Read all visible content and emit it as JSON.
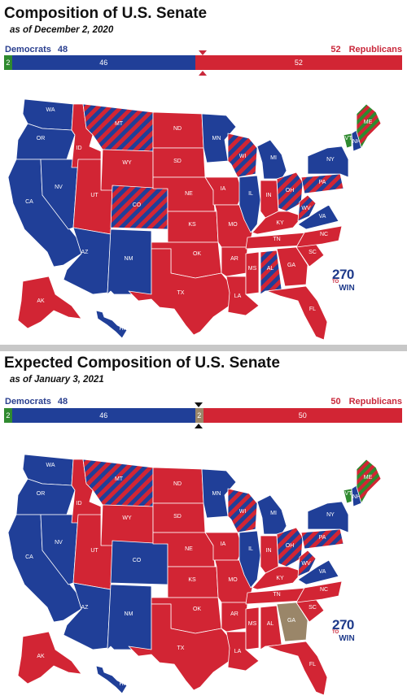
{
  "colors": {
    "democrat": "#203f98",
    "republican": "#d22534",
    "independent": "#2f8a2f",
    "tossup": "#9a8669",
    "split": "striped-red-blue",
    "split_ind_rep": "striped-green-red"
  },
  "top": {
    "title": "Composition of U.S. Senate",
    "subtitle": "as of December 2, 2020",
    "dem_label": "Democrats",
    "dem_total": "48",
    "rep_label": "Republicans",
    "rep_total": "52",
    "bar": {
      "independent": "2",
      "democrat": "46",
      "republican": "52"
    },
    "logo": {
      "number": "270",
      "to": "TO",
      "win": "WIN"
    }
  },
  "bottom": {
    "title": "Expected Composition of U.S. Senate",
    "subtitle": "as of January 3, 2021",
    "dem_label": "Democrats",
    "dem_total": "48",
    "rep_label": "Republicans",
    "rep_total": "50",
    "bar": {
      "independent": "2",
      "democrat": "46",
      "tossup": "2",
      "republican": "50"
    },
    "logo": {
      "number": "270",
      "to": "TO",
      "win": "WIN"
    }
  },
  "states_top": [
    {
      "abbr": "WA",
      "party": "D"
    },
    {
      "abbr": "OR",
      "party": "D"
    },
    {
      "abbr": "CA",
      "party": "D"
    },
    {
      "abbr": "NV",
      "party": "D"
    },
    {
      "abbr": "ID",
      "party": "R"
    },
    {
      "abbr": "MT",
      "party": "S"
    },
    {
      "abbr": "WY",
      "party": "R"
    },
    {
      "abbr": "UT",
      "party": "R"
    },
    {
      "abbr": "CO",
      "party": "S"
    },
    {
      "abbr": "AZ",
      "party": "D"
    },
    {
      "abbr": "NM",
      "party": "D"
    },
    {
      "abbr": "ND",
      "party": "R"
    },
    {
      "abbr": "SD",
      "party": "R"
    },
    {
      "abbr": "NE",
      "party": "R"
    },
    {
      "abbr": "KS",
      "party": "R"
    },
    {
      "abbr": "OK",
      "party": "R"
    },
    {
      "abbr": "TX",
      "party": "R"
    },
    {
      "abbr": "MN",
      "party": "D"
    },
    {
      "abbr": "IA",
      "party": "R"
    },
    {
      "abbr": "MO",
      "party": "R"
    },
    {
      "abbr": "AR",
      "party": "R"
    },
    {
      "abbr": "LA",
      "party": "R"
    },
    {
      "abbr": "WI",
      "party": "S"
    },
    {
      "abbr": "IL",
      "party": "D"
    },
    {
      "abbr": "MI",
      "party": "D"
    },
    {
      "abbr": "IN",
      "party": "R"
    },
    {
      "abbr": "OH",
      "party": "S"
    },
    {
      "abbr": "KY",
      "party": "R"
    },
    {
      "abbr": "TN",
      "party": "R"
    },
    {
      "abbr": "MS",
      "party": "R"
    },
    {
      "abbr": "AL",
      "party": "S"
    },
    {
      "abbr": "GA",
      "party": "R"
    },
    {
      "abbr": "FL",
      "party": "R"
    },
    {
      "abbr": "SC",
      "party": "R"
    },
    {
      "abbr": "NC",
      "party": "R"
    },
    {
      "abbr": "VA",
      "party": "D"
    },
    {
      "abbr": "WV",
      "party": "S"
    },
    {
      "abbr": "PA",
      "party": "S"
    },
    {
      "abbr": "NY",
      "party": "D"
    },
    {
      "abbr": "VT",
      "party": "I"
    },
    {
      "abbr": "NH",
      "party": "D"
    },
    {
      "abbr": "ME",
      "party": "X"
    },
    {
      "abbr": "AK",
      "party": "R"
    },
    {
      "abbr": "HI",
      "party": "D"
    }
  ],
  "states_bottom": [
    {
      "abbr": "WA",
      "party": "D"
    },
    {
      "abbr": "OR",
      "party": "D"
    },
    {
      "abbr": "CA",
      "party": "D"
    },
    {
      "abbr": "NV",
      "party": "D"
    },
    {
      "abbr": "ID",
      "party": "R"
    },
    {
      "abbr": "MT",
      "party": "S"
    },
    {
      "abbr": "WY",
      "party": "R"
    },
    {
      "abbr": "UT",
      "party": "R"
    },
    {
      "abbr": "CO",
      "party": "D"
    },
    {
      "abbr": "AZ",
      "party": "D"
    },
    {
      "abbr": "NM",
      "party": "D"
    },
    {
      "abbr": "ND",
      "party": "R"
    },
    {
      "abbr": "SD",
      "party": "R"
    },
    {
      "abbr": "NE",
      "party": "R"
    },
    {
      "abbr": "KS",
      "party": "R"
    },
    {
      "abbr": "OK",
      "party": "R"
    },
    {
      "abbr": "TX",
      "party": "R"
    },
    {
      "abbr": "MN",
      "party": "D"
    },
    {
      "abbr": "IA",
      "party": "R"
    },
    {
      "abbr": "MO",
      "party": "R"
    },
    {
      "abbr": "AR",
      "party": "R"
    },
    {
      "abbr": "LA",
      "party": "R"
    },
    {
      "abbr": "WI",
      "party": "S"
    },
    {
      "abbr": "IL",
      "party": "D"
    },
    {
      "abbr": "MI",
      "party": "D"
    },
    {
      "abbr": "IN",
      "party": "R"
    },
    {
      "abbr": "OH",
      "party": "S"
    },
    {
      "abbr": "KY",
      "party": "R"
    },
    {
      "abbr": "TN",
      "party": "R"
    },
    {
      "abbr": "MS",
      "party": "R"
    },
    {
      "abbr": "AL",
      "party": "R"
    },
    {
      "abbr": "GA",
      "party": "T"
    },
    {
      "abbr": "FL",
      "party": "R"
    },
    {
      "abbr": "SC",
      "party": "R"
    },
    {
      "abbr": "NC",
      "party": "R"
    },
    {
      "abbr": "VA",
      "party": "D"
    },
    {
      "abbr": "WV",
      "party": "S"
    },
    {
      "abbr": "PA",
      "party": "S"
    },
    {
      "abbr": "NY",
      "party": "D"
    },
    {
      "abbr": "VT",
      "party": "I"
    },
    {
      "abbr": "NH",
      "party": "D"
    },
    {
      "abbr": "ME",
      "party": "X"
    },
    {
      "abbr": "AK",
      "party": "R"
    },
    {
      "abbr": "HI",
      "party": "D"
    }
  ]
}
